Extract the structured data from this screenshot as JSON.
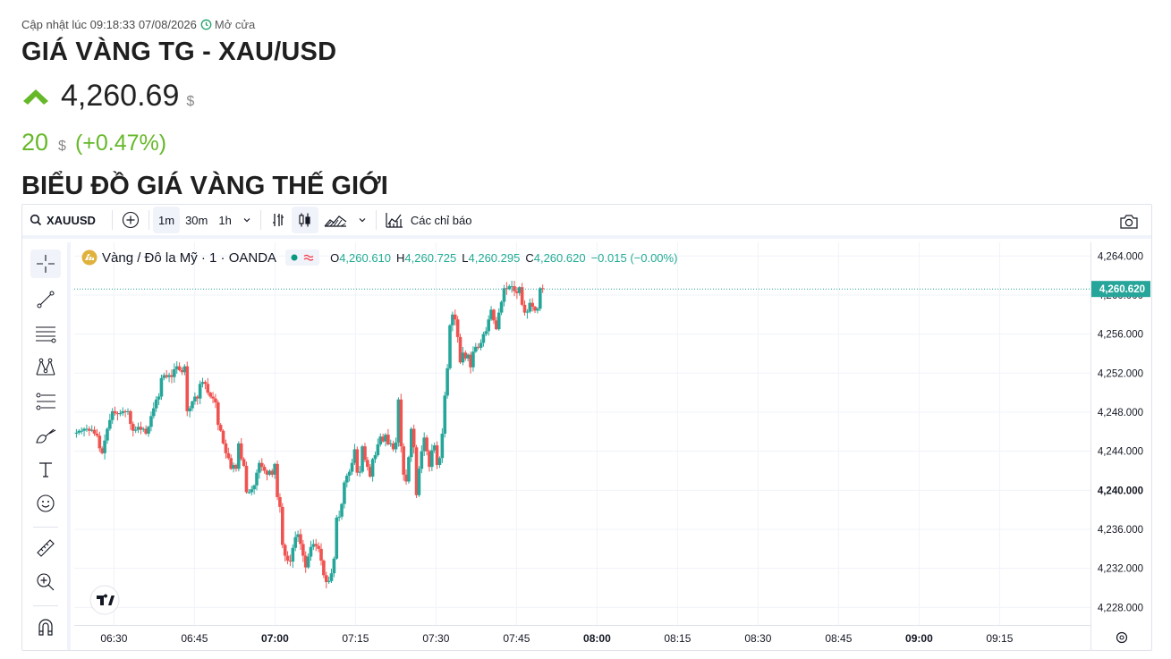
{
  "header": {
    "update_text": "Cập nhật lúc 09:18:33 07/08/2026",
    "market_status": "Mở cửa",
    "title": "GIÁ VÀNG TG - XAU/USD",
    "price": "4,260.69",
    "price_currency": "$",
    "change": "20",
    "change_currency": "$",
    "change_pct": "(+0.47%)",
    "chart_section_title": "BIỂU ĐỒ GIÁ VÀNG THẾ GIỚI",
    "up_color": "#66b829"
  },
  "toolbar": {
    "symbol": "XAUUSD",
    "intervals": [
      "1m",
      "30m",
      "1h"
    ],
    "active_interval": "1m",
    "indicators_label": "Các chỉ báo"
  },
  "legend": {
    "symbol_title": "Vàng / Đô la Mỹ · 1 · OANDA",
    "o_key": "O",
    "o": "4,260.610",
    "h_key": "H",
    "h": "4,260.725",
    "l_key": "L",
    "l": "4,260.295",
    "c_key": "C",
    "c": "4,260.620",
    "change": "−0.015 (−0.00%)"
  },
  "left_tools": [
    "crosshair-icon",
    "trend-line-icon",
    "horizontal-lines-icon",
    "pattern-icon",
    "fib-icon",
    "brush-icon",
    "text-icon",
    "emoji-icon",
    "ruler-icon",
    "zoom-in-icon",
    "magnet-icon"
  ],
  "chart_data": {
    "type": "candlestick",
    "title": "",
    "xlabel": "",
    "ylabel": "",
    "ylim": [
      4226.2,
      4265.4
    ],
    "y_ticks": [
      "4,264.000",
      "4,260.000",
      "4,256.000",
      "4,252.000",
      "4,248.000",
      "4,244.000",
      "4,240.000",
      "4,236.000",
      "4,232.000",
      "4,228.000"
    ],
    "y_tick_values": [
      4264,
      4260,
      4256,
      4252,
      4248,
      4244,
      4240,
      4236,
      4232,
      4228
    ],
    "bold_y_tick": "4,240.000",
    "x_ticks": [
      "06:30",
      "06:45",
      "07:00",
      "07:15",
      "07:30",
      "07:45",
      "08:00",
      "08:15",
      "08:30",
      "08:45",
      "09:00",
      "09:15"
    ],
    "x_tick_minutes": [
      30,
      45,
      60,
      75,
      90,
      105,
      120,
      135,
      150,
      165,
      180,
      195
    ],
    "bold_x_ticks": [
      "07:00",
      "08:00",
      "09:00"
    ],
    "last_price_label": "4,260.620",
    "last_price": 4260.62,
    "up_color": "#26a69a",
    "down_color": "#ef5350",
    "grid": true,
    "close_values": [
      4245.9,
      4246.1,
      4246.1,
      4246.3,
      4246.3,
      4246.1,
      4246.2,
      4245.8,
      4245.6,
      4244.3,
      4243.8,
      4245.1,
      4246.3,
      4247.2,
      4248.1,
      4247.9,
      4247.8,
      4247.9,
      4248.1,
      4248.0,
      4248.1,
      4246.8,
      4246.1,
      4246.2,
      4246.5,
      4246.2,
      4246.3,
      4245.8,
      4246.5,
      4247.6,
      4248.4,
      4249.3,
      4249.6,
      4251.5,
      4251.8,
      4251.6,
      4251.8,
      4251.6,
      4252.4,
      4252.7,
      4252.3,
      4252.1,
      4252.7,
      4248.1,
      4248.4,
      4249.1,
      4249.6,
      4249.4,
      4250.9,
      4251.1,
      4250.9,
      4250.0,
      4249.6,
      4249.4,
      4249.0,
      4246.7,
      4246.1,
      4244.8,
      4243.8,
      4243.3,
      4242.2,
      4242.6,
      4242.2,
      4244.8,
      4243.2,
      4242.5,
      4239.8,
      4239.8,
      4240.1,
      4240.5,
      4241.8,
      4242.8,
      4242.4,
      4242.0,
      4241.6,
      4242.0,
      4241.6,
      4242.7,
      4239.3,
      4238.3,
      4234.4,
      4233.3,
      4232.8,
      4232.7,
      4234.1,
      4235.2,
      4235.5,
      4234.5,
      4233.3,
      4232.1,
      4233.2,
      4234.2,
      4234.5,
      4234.3,
      4234.0,
      4232.8,
      4231.3,
      4230.6,
      4230.7,
      4231.5,
      4233.0,
      4237.2,
      4237.3,
      4238.6,
      4240.8,
      4241.5,
      4241.9,
      4242.8,
      4244.2,
      4241.8,
      4241.9,
      4244.5,
      4243.1,
      4242.4,
      4241.4,
      4243.2,
      4243.6,
      4244.7,
      4245.5,
      4245.0,
      4245.7,
      4244.7,
      4244.8,
      4244.2,
      4244.9,
      4249.3,
      4244.5,
      4241.6,
      4240.9,
      4243.4,
      4246.3,
      4244.4,
      4239.5,
      4242.2,
      4244.0,
      4245.4,
      4244.0,
      4242.4,
      4244.1,
      4244.6,
      4242.6,
      4243.3,
      4245.8,
      4249.7,
      4252.5,
      4256.9,
      4258.0,
      4257.5,
      4255.7,
      4253.1,
      4254.1,
      4253.5,
      4253.9,
      4252.6,
      4254.2,
      4254.7,
      4254.6,
      4255.1,
      4256.0,
      4256.3,
      4257.5,
      4258.5,
      4257.4,
      4256.5,
      4258.2,
      4259.3,
      4260.7,
      4260.6,
      4260.9,
      4260.9,
      4260.4,
      4260.2,
      4260.8,
      4259.0,
      4258.2,
      4258.3,
      4259.2,
      4258.8,
      4258.4,
      4258.6,
      4260.7,
      4260.6
    ]
  }
}
